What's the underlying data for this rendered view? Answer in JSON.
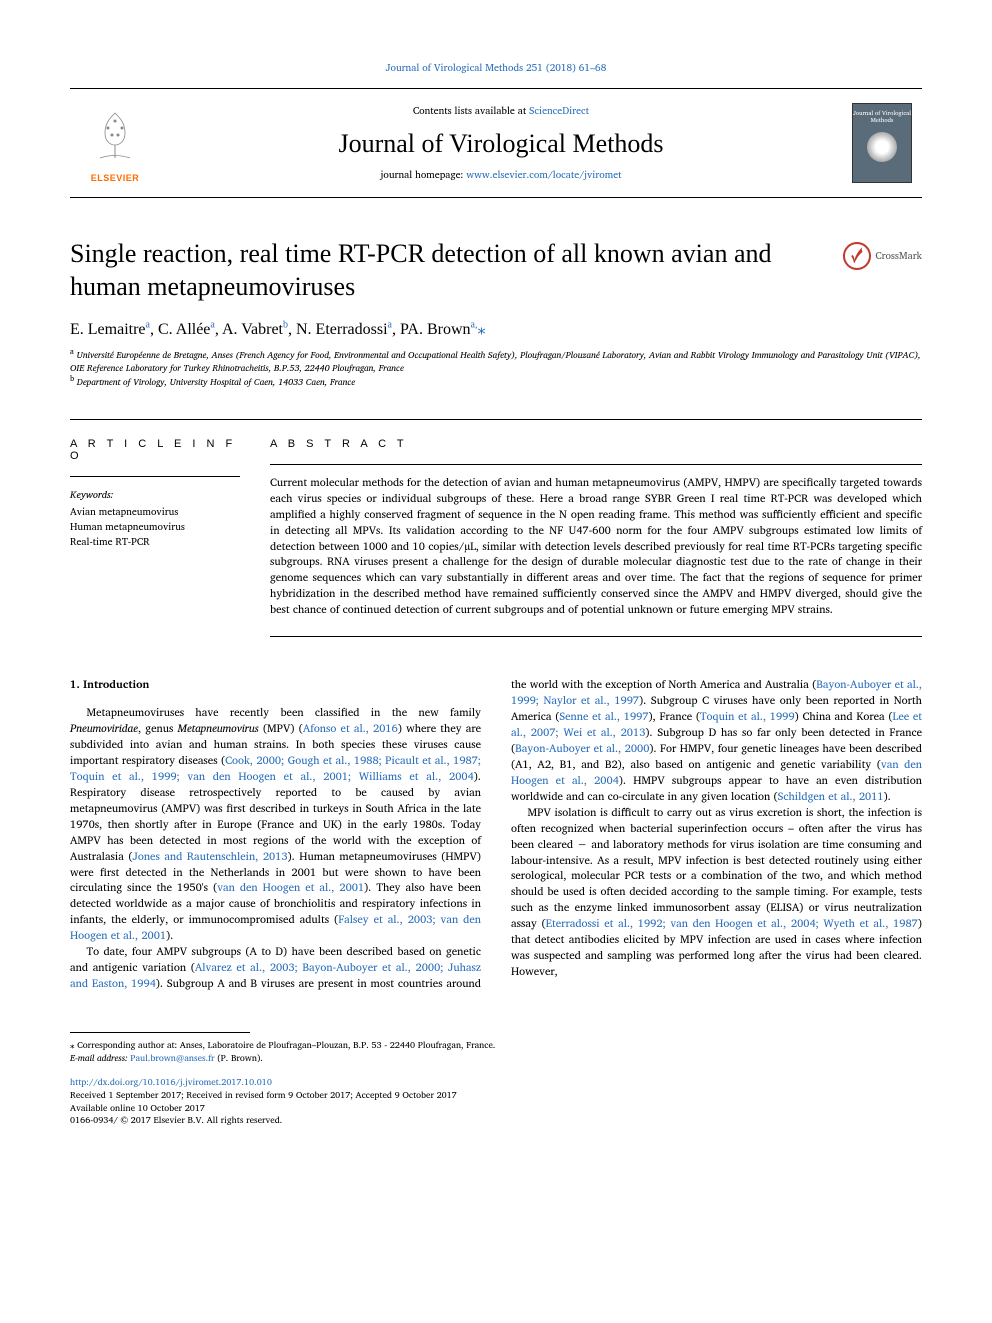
{
  "top_link": {
    "prefix": "",
    "link_text": "Journal of Virological Methods 251 (2018) 61–68",
    "href": "#"
  },
  "header": {
    "contents_prefix": "Contents lists available at ",
    "contents_link": "ScienceDirect",
    "journal_name": "Journal of Virological Methods",
    "homepage_prefix": "journal homepage: ",
    "homepage_link": "www.elsevier.com/locate/jviromet",
    "elsevier_label": "ELSEVIER",
    "cover_title": "Journal of Virological Methods"
  },
  "crossmark_label": "CrossMark",
  "title": "Single reaction, real time RT-PCR detection of all known avian and human metapneumoviruses",
  "authors_html": "E. Lemaitre<sup>a</sup>, C. Allée<sup>a</sup>, A. Vabret<sup>b</sup>, N. Eterradossi<sup>a</sup>, PA. Brown<sup>a,</sup><span class='star'>⁎</span>",
  "affiliations": [
    {
      "sup": "a",
      "text": "Université Européenne de Bretagne, Anses (French Agency for Food, Environmental and Occupational Health Safety), Ploufragan/Plouzané Laboratory, Avian and Rabbit Virology Immunology and Parasitology Unit (VIPAC), OIE Reference Laboratory for Turkey Rhinotracheitis, B.P.53, 22440 Ploufragan, France"
    },
    {
      "sup": "b",
      "text": "Department of Virology, University Hospital of Caen, 14033 Caen, France"
    }
  ],
  "article_info": {
    "heading": "A R T I C L E  I N F O",
    "keywords_label": "Keywords:",
    "keywords": [
      "Avian metapneumovirus",
      "Human metapneumovirus",
      "Real-time RT-PCR"
    ]
  },
  "abstract": {
    "heading": "A B S T R A C T",
    "text": "Current molecular methods for the detection of avian and human metapneumovirus (AMPV, HMPV) are specifically targeted towards each virus species or individual subgroups of these. Here a broad range SYBR Green I real time RT-PCR was developed which amplified a highly conserved fragment of sequence in the N open reading frame. This method was sufficiently efficient and specific in detecting all MPVs. Its validation according to the NF U47-600 norm for the four AMPV subgroups estimated low limits of detection between 1000 and 10 copies/µL, similar with detection levels described previously for real time RT-PCRs targeting specific subgroups. RNA viruses present a challenge for the design of durable molecular diagnostic test due to the rate of change in their genome sequences which can vary substantially in different areas and over time. The fact that the regions of sequence for primer hybridization in the described method have remained sufficiently conserved since the AMPV and HMPV diverged, should give the best chance of continued detection of current subgroups and of potential unknown or future emerging MPV strains."
  },
  "intro_heading": "1. Introduction",
  "paragraphs": [
    "Metapneumoviruses have recently been classified in the new family <i>Pneumoviridae</i>, genus <i>Metapneumovirus</i> (MPV) (<span class='ref'>Afonso et al., 2016</span>) where they are subdivided into avian and human strains. In both species these viruses cause important respiratory diseases (<span class='ref'>Cook, 2000; Gough et al., 1988; Picault et al., 1987; Toquin et al., 1999; van den Hoogen et al., 2001; Williams et al., 2004</span>). Respiratory disease retrospectively reported to be caused by avian metapneumovirus (AMPV) was first described in turkeys in South Africa in the late 1970s, then shortly after in Europe (France and UK) in the early 1980s. Today AMPV has been detected in most regions of the world with the exception of Australasia (<span class='ref'>Jones and Rautenschlein, 2013</span>). Human metapneumoviruses (HMPV) were first detected in the Netherlands in 2001 but were shown to have been circulating since the 1950's (<span class='ref'>van den Hoogen et al., 2001</span>). They also have been detected worldwide as a major cause of bronchiolitis and respiratory infections in infants, the elderly, or immunocompromised adults (<span class='ref'>Falsey et al., 2003; van den Hoogen et al., 2001</span>).",
    "To date, four AMPV subgroups (A to D) have been described based on genetic and antigenic variation (<span class='ref'>Alvarez et al., 2003; Bayon-Auboyer et al., 2000; Juhasz and Easton, 1994</span>). Subgroup A and B viruses are present in most countries around the world with the exception of North America and Australia (<span class='ref'>Bayon-Auboyer et al., 1999; Naylor et al., 1997</span>). Subgroup C viruses have only been reported in North America (<span class='ref'>Senne et al., 1997</span>), France (<span class='ref'>Toquin et al., 1999</span>) China and Korea (<span class='ref'>Lee et al., 2007; Wei et al., 2013</span>). Subgroup D has so far only been detected in France (<span class='ref'>Bayon-Auboyer et al., 2000</span>). For HMPV, four genetic lineages have been described (A1, A2, B1, and B2), also based on antigenic and genetic variability (<span class='ref'>van den Hoogen et al., 2004</span>). HMPV subgroups appear to have an even distribution worldwide and can co-circulate in any given location (<span class='ref'>Schildgen et al., 2011</span>).",
    "MPV isolation is difficult to carry out as virus excretion is short, the infection is often recognized when bacterial superinfection occurs – often after the virus has been cleared − and laboratory methods for virus isolation are time consuming and labour-intensive. As a result, MPV infection is best detected routinely using either serological, molecular PCR tests or a combination of the two, and which method should be used is often decided according to the sample timing. For example, tests such as the enzyme linked immunosorbent assay (ELISA) or virus neutralization assay (<span class='ref'>Eterradossi et al., 1992; van den Hoogen et al., 2004; Wyeth et al., 1987</span>) that detect antibodies elicited by MPV infection are used in cases where infection was suspected and sampling was performed long after the virus had been cleared. However,"
  ],
  "footnote": {
    "corr_label": "⁎ Corresponding author at: Anses, Laboratoire de Ploufragan–Plouzan, B.P. 53 - 22440 Ploufragan, France.",
    "email_label": "E-mail address: ",
    "email": "Paul.brown@anses.fr",
    "email_suffix": " (P. Brown)."
  },
  "doi": "http://dx.doi.org/10.1016/j.jviromet.2017.10.010",
  "history": [
    "Received 1 September 2017; Received in revised form 9 October 2017; Accepted 9 October 2017",
    "Available online 10 October 2017",
    "0166-0934/ © 2017 Elsevier B.V. All rights reserved."
  ],
  "colors": {
    "link": "#2a6ebb",
    "elsevier_orange": "#ff6b00",
    "crossmark_red": "#c0392b",
    "cover_bg": "#5a6b7a"
  }
}
